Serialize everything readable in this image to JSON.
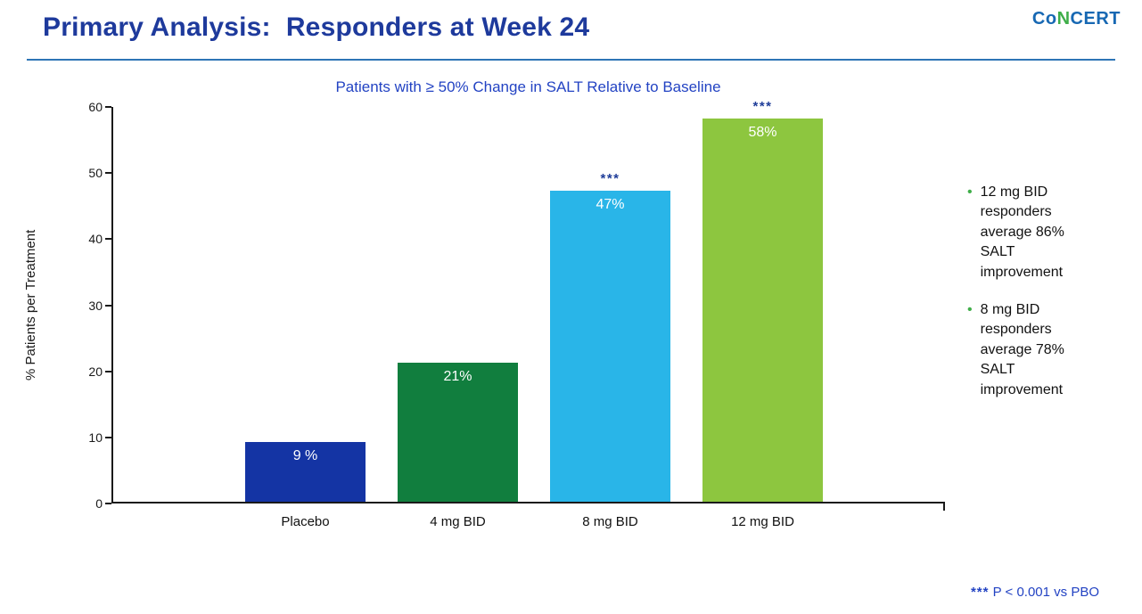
{
  "slide": {
    "title": "Primary Analysis:  Responders at Week 24",
    "logo_parts": [
      {
        "text": "Co",
        "color": "#1768b3"
      },
      {
        "text": "N",
        "color": "#3fae49"
      },
      {
        "text": "CERT",
        "color": "#1768b3"
      }
    ]
  },
  "chart_data": {
    "type": "bar",
    "title": "Patients with ≥ 50% Change in SALT Relative to Baseline",
    "ylabel": "% Patients per Treatment",
    "xlabel": "",
    "categories": [
      "Placebo",
      "4 mg BID",
      "8 mg BID",
      "12 mg BID"
    ],
    "values": [
      9,
      21,
      47,
      58
    ],
    "bar_labels": [
      "9 %",
      "21%",
      "47%",
      "58%"
    ],
    "bar_colors": [
      "#1434a4",
      "#117e3e",
      "#29b5e8",
      "#8dc63f"
    ],
    "significance": [
      "",
      "",
      "***",
      "***"
    ],
    "ylim": [
      0,
      60
    ],
    "yticks": [
      0,
      10,
      20,
      30,
      40,
      50,
      60
    ],
    "grid": false,
    "legend": "none"
  },
  "notes": {
    "bullet_color": "#3fae49",
    "items": [
      "12 mg BID responders average 86% SALT improvement",
      "8 mg BID responders average 78% SALT improvement"
    ]
  },
  "footnote": {
    "stars": "***",
    "text": " P < 0.001 vs PBO"
  }
}
